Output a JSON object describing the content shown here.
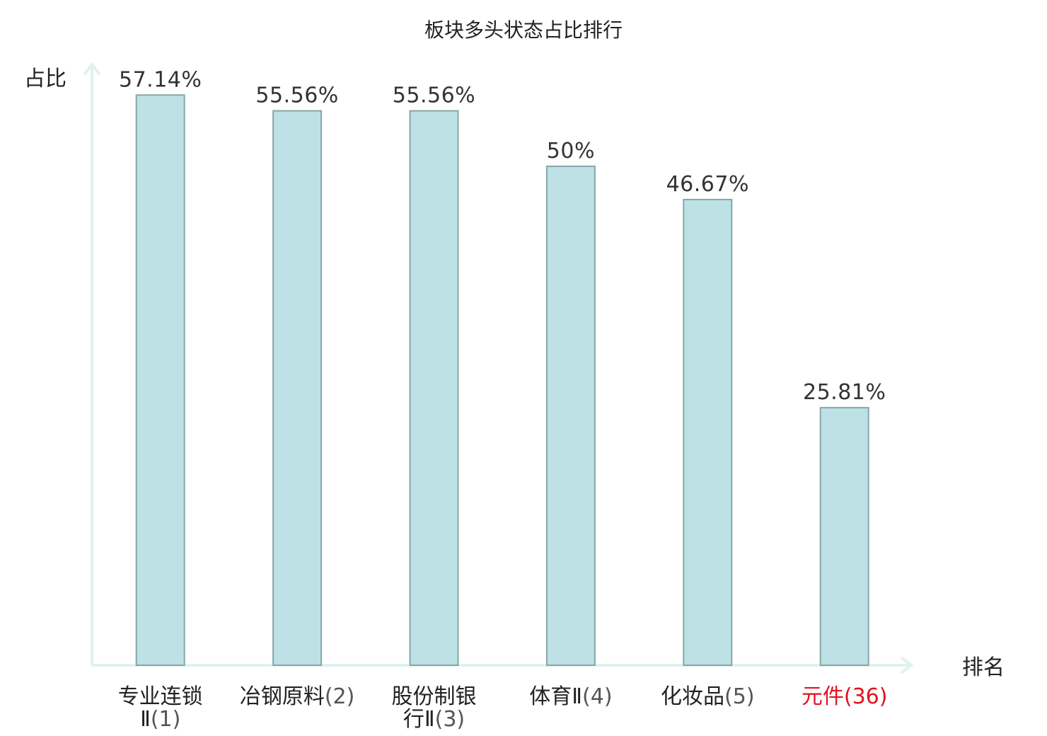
{
  "chart_data": {
    "type": "bar",
    "title": "板块多头状态占比排行",
    "xlabel": "排名",
    "ylabel": "占比",
    "ylim": [
      0,
      60
    ],
    "grid": false,
    "categories": [
      {
        "name_lines": [
          "专业连锁",
          "Ⅱ"
        ],
        "rank": "(1)",
        "highlight": false
      },
      {
        "name_lines": [
          "冶钢原料"
        ],
        "rank": "(2)",
        "highlight": false
      },
      {
        "name_lines": [
          "股份制银",
          "行Ⅱ"
        ],
        "rank": "(3)",
        "highlight": false
      },
      {
        "name_lines": [
          "体育Ⅱ"
        ],
        "rank": "(4)",
        "highlight": false
      },
      {
        "name_lines": [
          "化妆品"
        ],
        "rank": "(5)",
        "highlight": false
      },
      {
        "name_lines": [
          "元件"
        ],
        "rank": "(36)",
        "highlight": true
      }
    ],
    "values": [
      57.14,
      55.56,
      55.56,
      50,
      46.67,
      25.81
    ],
    "value_labels": [
      "57.14%",
      "55.56%",
      "55.56%",
      "50%",
      "46.67%",
      "25.81%"
    ]
  },
  "colors": {
    "bar_fill": "#bde1e4",
    "bar_stroke": "#86a7a9",
    "axis": "#e0f2ef",
    "text": "#222222",
    "rank_text": "#555555",
    "highlight": "#e0141e"
  }
}
